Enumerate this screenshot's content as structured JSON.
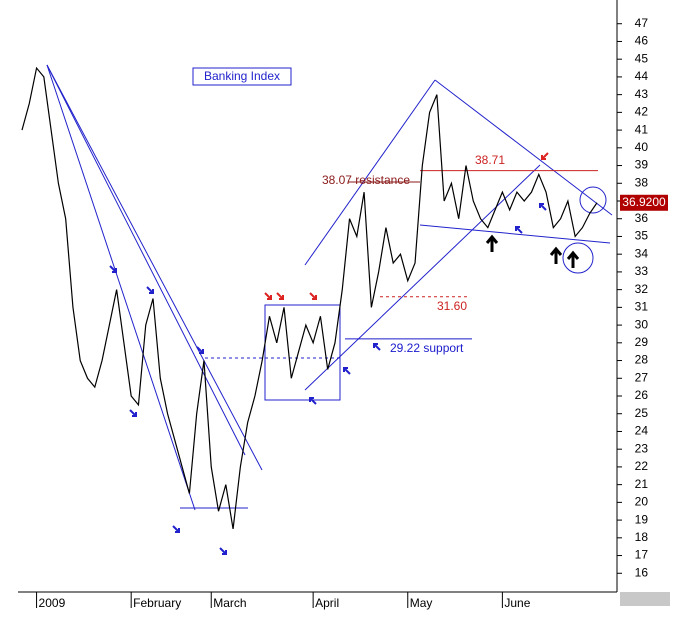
{
  "chart_data": {
    "type": "line",
    "title": "Banking Index",
    "categories": [
      null,
      null,
      "2009",
      null,
      null,
      null,
      null,
      null,
      null,
      null,
      null,
      null,
      null,
      null,
      null,
      "February",
      null,
      null,
      null,
      null,
      null,
      null,
      null,
      null,
      null,
      null,
      "March",
      null,
      null,
      null,
      null,
      null,
      null,
      null,
      null,
      null,
      null,
      null,
      null,
      null,
      "April",
      null,
      null,
      null,
      null,
      null,
      null,
      null,
      null,
      null,
      null,
      null,
      null,
      "May",
      null,
      null,
      null,
      null,
      null,
      null,
      null,
      null,
      null,
      null,
      null,
      null,
      "June",
      null,
      null,
      null,
      null,
      null,
      null,
      null,
      null,
      null,
      null,
      null,
      null,
      null
    ],
    "values": [
      41,
      42.5,
      44.5,
      44,
      41,
      38,
      36,
      31,
      28,
      27,
      26.5,
      28,
      30,
      32,
      29,
      26,
      25.5,
      30,
      31.5,
      27,
      25,
      23.5,
      22,
      20.5,
      25,
      28,
      22,
      19.5,
      21,
      18.5,
      22,
      24.5,
      26,
      28,
      30.5,
      29,
      31,
      27,
      28.5,
      30,
      29,
      30.5,
      27.5,
      29,
      32,
      36,
      35,
      37.5,
      31,
      33,
      35.5,
      33.5,
      34,
      32.5,
      33.5,
      39,
      42,
      43,
      37,
      38,
      36,
      39,
      37,
      36,
      35.5,
      36.5,
      37.5,
      36.5,
      37.5,
      37,
      37.5,
      38.5,
      37.5,
      35.5,
      36,
      37,
      35,
      35.5,
      36.3,
      36.9
    ],
    "color": "#000000",
    "last_label": "36.9200",
    "ylim": [
      15,
      48
    ],
    "yticks": [
      16,
      17,
      18,
      19,
      20,
      21,
      22,
      23,
      24,
      25,
      26,
      27,
      28,
      29,
      30,
      31,
      32,
      33,
      34,
      35,
      36,
      37,
      38,
      39,
      40,
      41,
      42,
      43,
      44,
      45,
      46,
      47
    ],
    "annotations": [
      {
        "text": "38.07 resistance",
        "value": 38.07,
        "color": "#8b1a1a"
      },
      {
        "text": "38.71",
        "value": 38.71,
        "color": "#cc2222"
      },
      {
        "text": "31.60",
        "value": 31.6,
        "color": "#cc2222"
      },
      {
        "text": "29.22 support",
        "value": 29.22,
        "color": "#1a1acc"
      }
    ]
  }
}
